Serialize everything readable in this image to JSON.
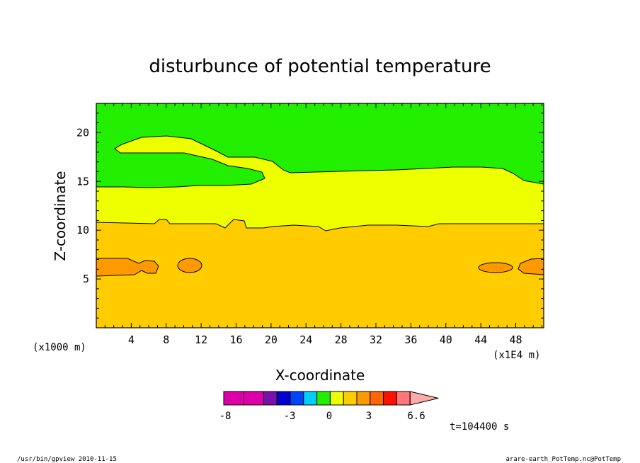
{
  "chart_data": {
    "type": "contour",
    "title": "disturbunce of potential temperature",
    "xlabel": "X-coordinate",
    "ylabel": "Z-coordinate",
    "x_unit_left": "(x1000 m)",
    "x_unit_right": "(x1E4 m)",
    "xlim": [
      0,
      51.2
    ],
    "ylim": [
      0,
      23
    ],
    "x_ticks": [
      "4",
      "8",
      "12",
      "16",
      "20",
      "24",
      "28",
      "32",
      "36",
      "40",
      "44",
      "48"
    ],
    "y_ticks": [
      "5",
      "10",
      "15",
      "20"
    ],
    "regions": [
      {
        "level": "0..0.66",
        "color": "#ffcc00",
        "z_range": [
          0,
          10.7
        ]
      },
      {
        "level": "-0.66..0",
        "color": "#eeff00",
        "z_range": [
          10.7,
          15.5
        ]
      },
      {
        "level": "-1.32..-0.66",
        "color": "#22ee00",
        "z_range": [
          15.5,
          23
        ]
      },
      {
        "level": "0.66..1.32",
        "color": "#ff9900",
        "note": "small cells near z=6"
      }
    ],
    "colorbar": {
      "colors": [
        "#dd00aa",
        "#dd00aa",
        "#7711aa",
        "#0000cc",
        "#0044ff",
        "#00ccff",
        "#22ee00",
        "#eeff00",
        "#ffcc00",
        "#ff9900",
        "#ff6600",
        "#ff1100",
        "#ff7777",
        "#ffaaaa"
      ],
      "tick_labels": [
        "-8",
        "-3",
        "0",
        "3",
        "6.6"
      ]
    },
    "time_label": "t=104400 s"
  },
  "footer": {
    "left": "/usr/bin/gpview  2010-11-15",
    "right": "arare-earth_PotTemp.nc@PotTemp"
  }
}
